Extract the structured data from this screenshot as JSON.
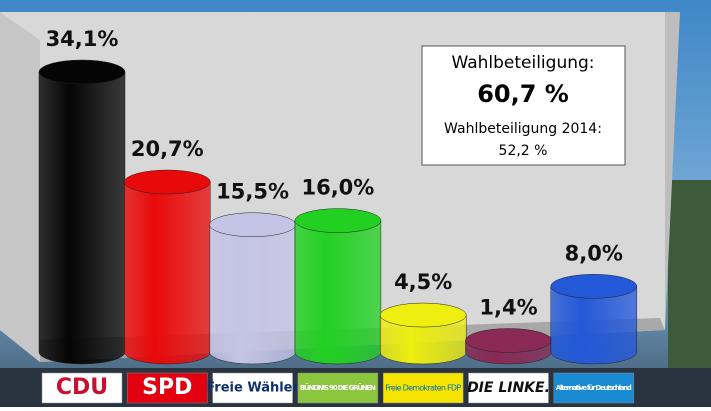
{
  "chart_data": {
    "type": "bar",
    "categories": [
      "CDU",
      "SPD",
      "Freie Wähler",
      "BÜNDNIS 90 DIE GRÜNEN",
      "Freie Demokraten FDP",
      "DIE LINKE.",
      "Alternative für Deutschland"
    ],
    "values": [
      34.1,
      20.7,
      15.5,
      16.0,
      4.5,
      1.4,
      8.0
    ],
    "value_labels": [
      "34,1%",
      "20,7%",
      "15,5%",
      "16,0%",
      "4,5%",
      "1,4%",
      "8,0%"
    ],
    "colors": [
      "#050505",
      "#e80a0a",
      "#c4c4e6",
      "#22d022",
      "#eeee10",
      "#8a2a55",
      "#2358d8"
    ],
    "annotations": {
      "label": "Wahlbeteiligung:",
      "value": "60,7 %",
      "label_2014": "Wahlbeteiligung 2014:",
      "value_2014": "52,2 %"
    }
  }
}
